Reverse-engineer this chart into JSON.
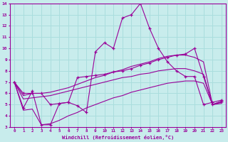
{
  "xlabel": "Windchill (Refroidissement éolien,°C)",
  "xlim": [
    -0.5,
    23.5
  ],
  "ylim": [
    3,
    14
  ],
  "xticks": [
    0,
    1,
    2,
    3,
    4,
    5,
    6,
    7,
    8,
    9,
    10,
    11,
    12,
    13,
    14,
    15,
    16,
    17,
    18,
    19,
    20,
    21,
    22,
    23
  ],
  "yticks": [
    3,
    4,
    5,
    6,
    7,
    8,
    9,
    10,
    11,
    12,
    13,
    14
  ],
  "bg_color": "#c8ecec",
  "line_color": "#990099",
  "grid_color": "#aadddd",
  "series": [
    {
      "x": [
        0,
        1,
        2,
        3,
        4,
        5,
        6,
        7,
        8,
        9,
        10,
        11,
        12,
        13,
        14,
        15,
        16,
        17,
        18,
        19,
        20,
        21,
        22,
        23
      ],
      "y": [
        7.0,
        4.7,
        6.2,
        3.2,
        3.2,
        5.1,
        5.2,
        4.9,
        4.3,
        9.7,
        10.5,
        10.0,
        12.7,
        13.0,
        14.0,
        11.8,
        10.0,
        8.8,
        8.0,
        7.5,
        7.5,
        5.0,
        5.2,
        5.4
      ],
      "marker": "+"
    },
    {
      "x": [
        0,
        1,
        2,
        3,
        4,
        5,
        6,
        7,
        8,
        9,
        10,
        11,
        12,
        13,
        14,
        15,
        16,
        17,
        18,
        19,
        20,
        21,
        22,
        23
      ],
      "y": [
        7.0,
        6.0,
        6.0,
        6.0,
        5.0,
        5.1,
        5.2,
        7.4,
        7.5,
        7.6,
        7.7,
        7.9,
        8.0,
        8.2,
        8.5,
        8.7,
        9.0,
        9.2,
        9.4,
        9.5,
        10.0,
        7.5,
        5.0,
        5.3
      ],
      "marker": "+"
    },
    {
      "x": [
        0,
        1,
        2,
        3,
        4,
        5,
        6,
        7,
        8,
        9,
        10,
        11,
        12,
        13,
        14,
        15,
        16,
        17,
        18,
        19,
        20,
        21,
        22,
        23
      ],
      "y": [
        7.0,
        5.8,
        6.0,
        6.0,
        6.1,
        6.3,
        6.5,
        6.8,
        7.1,
        7.4,
        7.6,
        7.9,
        8.1,
        8.4,
        8.6,
        8.8,
        9.1,
        9.3,
        9.4,
        9.4,
        9.2,
        8.8,
        5.0,
        5.3
      ],
      "marker": null
    },
    {
      "x": [
        0,
        1,
        2,
        3,
        4,
        5,
        6,
        7,
        8,
        9,
        10,
        11,
        12,
        13,
        14,
        15,
        16,
        17,
        18,
        19,
        20,
        21,
        22,
        23
      ],
      "y": [
        7.0,
        5.5,
        5.6,
        5.7,
        5.8,
        6.0,
        6.2,
        6.4,
        6.6,
        6.8,
        7.0,
        7.2,
        7.4,
        7.5,
        7.7,
        7.8,
        8.0,
        8.1,
        8.2,
        8.2,
        8.0,
        7.7,
        5.0,
        5.2
      ],
      "marker": null
    },
    {
      "x": [
        0,
        1,
        2,
        3,
        4,
        5,
        6,
        7,
        8,
        9,
        10,
        11,
        12,
        13,
        14,
        15,
        16,
        17,
        18,
        19,
        20,
        21,
        22,
        23
      ],
      "y": [
        7.0,
        4.5,
        4.6,
        3.2,
        3.3,
        3.6,
        4.0,
        4.3,
        4.7,
        5.0,
        5.3,
        5.6,
        5.8,
        6.1,
        6.3,
        6.5,
        6.7,
        6.9,
        7.0,
        7.1,
        7.1,
        6.9,
        5.0,
        5.1
      ],
      "marker": null
    }
  ]
}
